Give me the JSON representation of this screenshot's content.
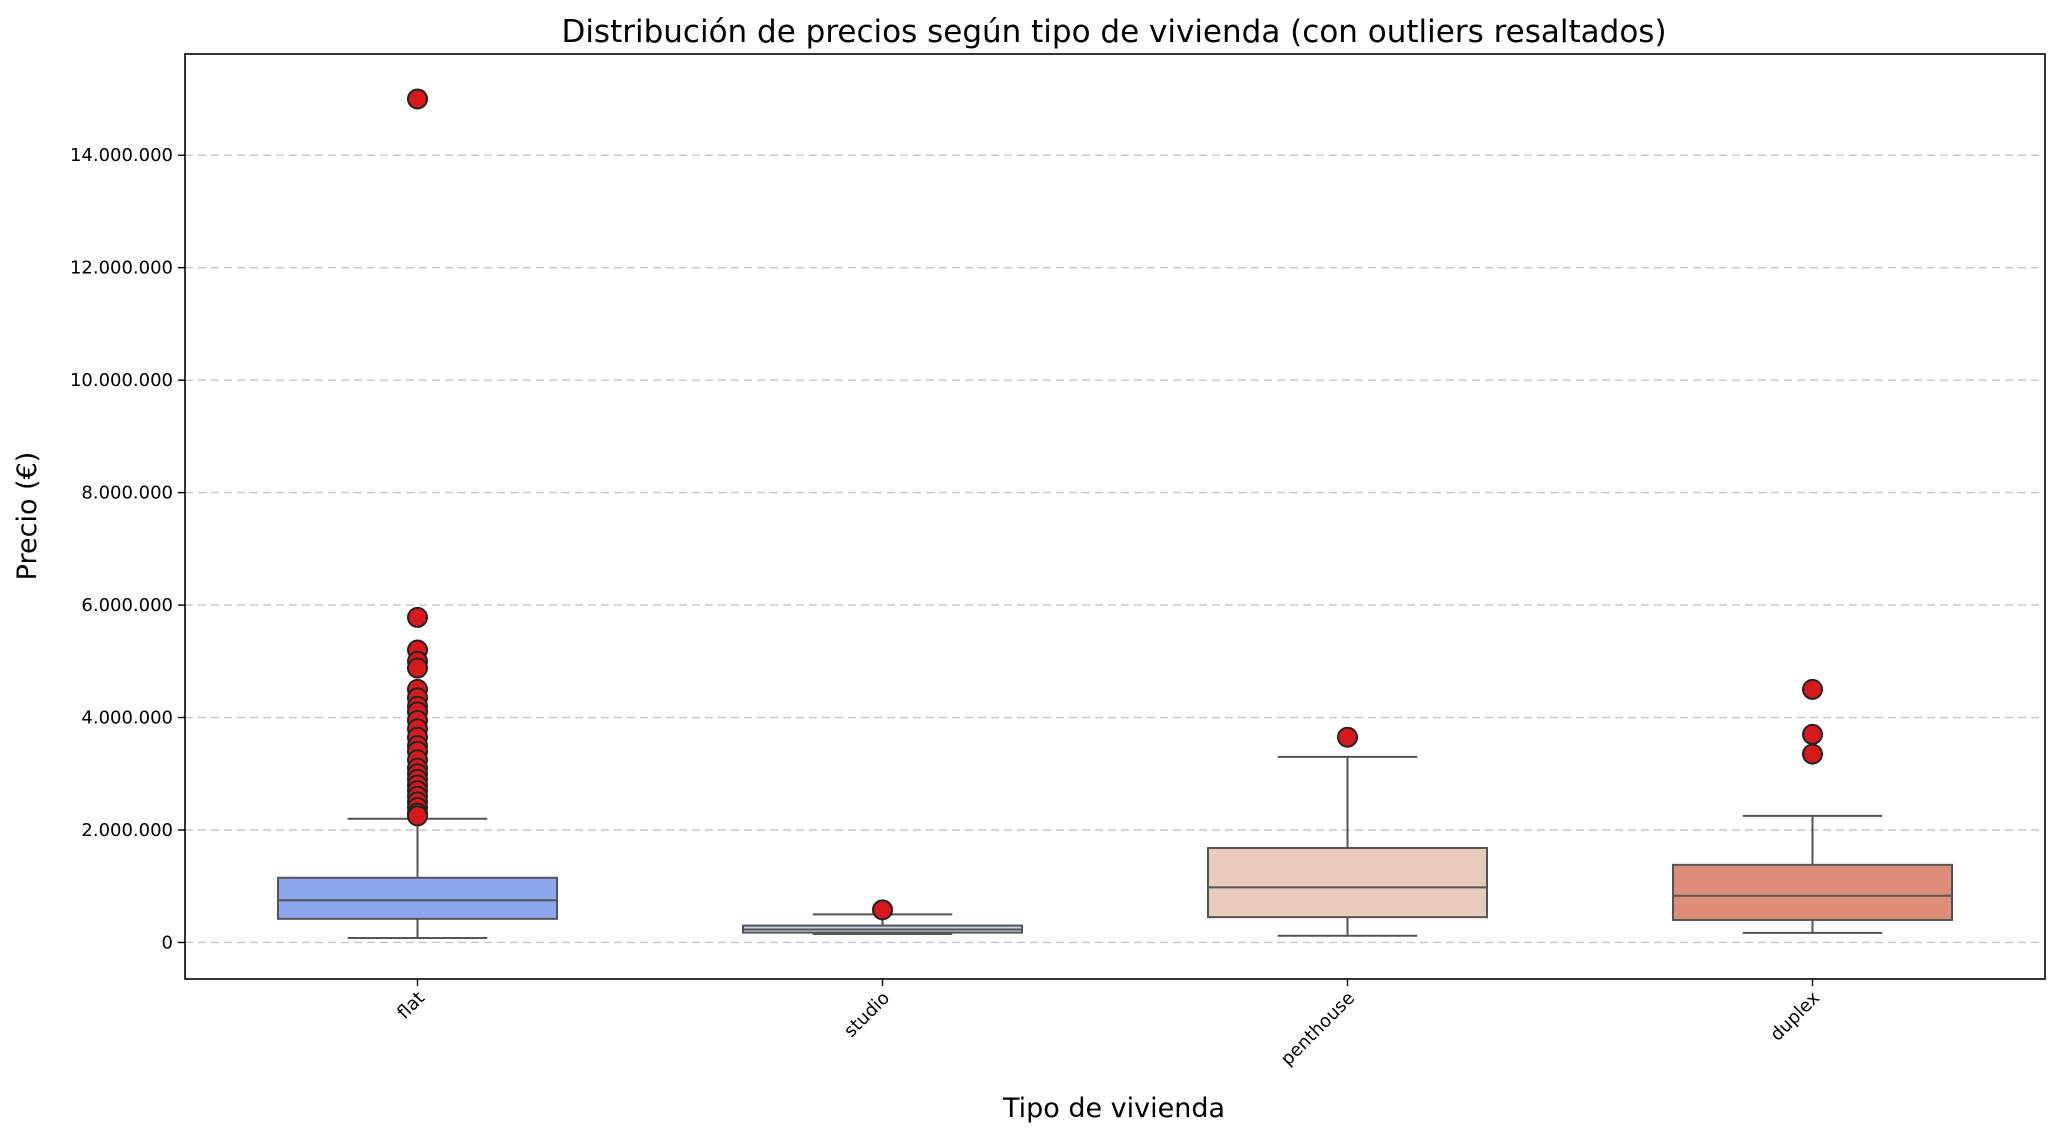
{
  "chart_data": {
    "type": "box",
    "title": "Distribución de precios según tipo de vivienda (con outliers resaltados)",
    "xlabel": "Tipo de vivienda",
    "ylabel": "Precio (€)",
    "ylim": [
      -650000,
      15800000
    ],
    "yticks": [
      0,
      2000000,
      4000000,
      6000000,
      8000000,
      10000000,
      12000000,
      14000000
    ],
    "ytick_labels": [
      "0",
      "2.000.000",
      "4.000.000",
      "6.000.000",
      "8.000.000",
      "10.000.000",
      "12.000.000",
      "14.000.000"
    ],
    "grid": "y-dashed",
    "categories": [
      "flat",
      "studio",
      "penthouse",
      "duplex"
    ],
    "boxes": [
      {
        "category": "flat",
        "color": "#8da7ee",
        "whisker_low": 80000,
        "q1": 420000,
        "median": 750000,
        "q3": 1150000,
        "whisker_high": 2200000,
        "outliers": [
          15000000,
          5780000,
          5200000,
          5000000,
          4880000,
          4500000,
          4350000,
          4200000,
          4100000,
          3950000,
          3800000,
          3650000,
          3500000,
          3400000,
          3250000,
          3100000,
          3000000,
          2900000,
          2800000,
          2700000,
          2600000,
          2500000,
          2400000,
          2300000,
          2250000
        ]
      },
      {
        "category": "studio",
        "color": "#c2d0ee",
        "whisker_low": 150000,
        "q1": 175000,
        "median": 230000,
        "q3": 300000,
        "whisker_high": 500000,
        "outliers": [
          580000
        ]
      },
      {
        "category": "penthouse",
        "color": "#eacbbc",
        "whisker_low": 120000,
        "q1": 450000,
        "median": 980000,
        "q3": 1680000,
        "whisker_high": 3300000,
        "outliers": [
          3650000
        ]
      },
      {
        "category": "duplex",
        "color": "#de8e78",
        "whisker_low": 170000,
        "q1": 400000,
        "median": 830000,
        "q3": 1380000,
        "whisker_high": 2250000,
        "outliers": [
          4500000,
          3700000,
          3350000
        ]
      }
    ]
  }
}
